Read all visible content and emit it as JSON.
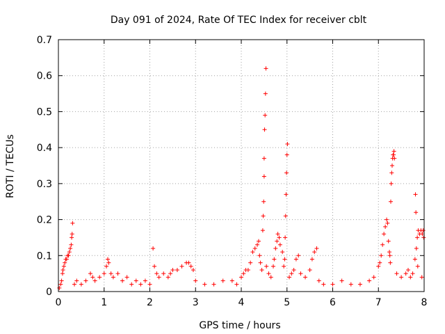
{
  "chart_data": {
    "type": "scatter",
    "title": "Day 091 of 2024, Rate Of TEC Index for receiver cblt",
    "xlabel": "GPS time / hours",
    "ylabel": "ROTI / TECUs",
    "xlim": [
      0,
      8
    ],
    "ylim": [
      0,
      0.7
    ],
    "xticks": [
      0,
      1,
      2,
      3,
      4,
      5,
      6,
      7,
      8
    ],
    "yticks": [
      0,
      0.1,
      0.2,
      0.3,
      0.4,
      0.5,
      0.6,
      0.7
    ],
    "grid": true,
    "marker": "+",
    "color": "#ff0000",
    "series": [
      {
        "name": "ROTI",
        "points": [
          [
            0.02,
            0.01
          ],
          [
            0.05,
            0.02
          ],
          [
            0.07,
            0.03
          ],
          [
            0.09,
            0.05
          ],
          [
            0.1,
            0.06
          ],
          [
            0.12,
            0.07
          ],
          [
            0.14,
            0.08
          ],
          [
            0.16,
            0.09
          ],
          [
            0.18,
            0.09
          ],
          [
            0.2,
            0.1
          ],
          [
            0.22,
            0.1
          ],
          [
            0.24,
            0.11
          ],
          [
            0.26,
            0.12
          ],
          [
            0.28,
            0.13
          ],
          [
            0.29,
            0.15
          ],
          [
            0.3,
            0.16
          ],
          [
            0.31,
            0.19
          ],
          [
            0.35,
            0.02
          ],
          [
            0.4,
            0.03
          ],
          [
            0.5,
            0.02
          ],
          [
            0.6,
            0.03
          ],
          [
            0.7,
            0.05
          ],
          [
            0.75,
            0.04
          ],
          [
            0.8,
            0.03
          ],
          [
            0.9,
            0.04
          ],
          [
            1.0,
            0.05
          ],
          [
            1.05,
            0.07
          ],
          [
            1.08,
            0.09
          ],
          [
            1.1,
            0.08
          ],
          [
            1.15,
            0.05
          ],
          [
            1.2,
            0.04
          ],
          [
            1.3,
            0.05
          ],
          [
            1.4,
            0.03
          ],
          [
            1.5,
            0.04
          ],
          [
            1.6,
            0.02
          ],
          [
            1.7,
            0.03
          ],
          [
            1.8,
            0.02
          ],
          [
            1.9,
            0.03
          ],
          [
            2.0,
            0.02
          ],
          [
            2.07,
            0.12
          ],
          [
            2.1,
            0.07
          ],
          [
            2.15,
            0.05
          ],
          [
            2.2,
            0.04
          ],
          [
            2.3,
            0.05
          ],
          [
            2.4,
            0.04
          ],
          [
            2.45,
            0.05
          ],
          [
            2.5,
            0.06
          ],
          [
            2.6,
            0.06
          ],
          [
            2.7,
            0.07
          ],
          [
            2.8,
            0.08
          ],
          [
            2.85,
            0.08
          ],
          [
            2.9,
            0.07
          ],
          [
            2.95,
            0.06
          ],
          [
            3.0,
            0.03
          ],
          [
            3.2,
            0.02
          ],
          [
            3.4,
            0.02
          ],
          [
            3.6,
            0.03
          ],
          [
            3.8,
            0.03
          ],
          [
            3.9,
            0.02
          ],
          [
            4.0,
            0.04
          ],
          [
            4.05,
            0.05
          ],
          [
            4.1,
            0.06
          ],
          [
            4.15,
            0.06
          ],
          [
            4.2,
            0.08
          ],
          [
            4.25,
            0.11
          ],
          [
            4.3,
            0.12
          ],
          [
            4.35,
            0.13
          ],
          [
            4.38,
            0.14
          ],
          [
            4.4,
            0.1
          ],
          [
            4.42,
            0.08
          ],
          [
            4.45,
            0.06
          ],
          [
            4.47,
            0.17
          ],
          [
            4.48,
            0.21
          ],
          [
            4.49,
            0.25
          ],
          [
            4.5,
            0.32
          ],
          [
            4.5,
            0.37
          ],
          [
            4.51,
            0.45
          ],
          [
            4.52,
            0.49
          ],
          [
            4.53,
            0.55
          ],
          [
            4.54,
            0.62
          ],
          [
            4.55,
            0.07
          ],
          [
            4.6,
            0.05
          ],
          [
            4.65,
            0.04
          ],
          [
            4.7,
            0.07
          ],
          [
            4.72,
            0.09
          ],
          [
            4.75,
            0.12
          ],
          [
            4.78,
            0.14
          ],
          [
            4.8,
            0.16
          ],
          [
            4.83,
            0.15
          ],
          [
            4.85,
            0.13
          ],
          [
            4.9,
            0.11
          ],
          [
            4.93,
            0.07
          ],
          [
            4.95,
            0.09
          ],
          [
            4.96,
            0.15
          ],
          [
            4.97,
            0.21
          ],
          [
            4.98,
            0.27
          ],
          [
            4.99,
            0.33
          ],
          [
            5.0,
            0.38
          ],
          [
            5.01,
            0.41
          ],
          [
            5.05,
            0.04
          ],
          [
            5.1,
            0.05
          ],
          [
            5.15,
            0.06
          ],
          [
            5.2,
            0.09
          ],
          [
            5.25,
            0.1
          ],
          [
            5.3,
            0.05
          ],
          [
            5.4,
            0.04
          ],
          [
            5.5,
            0.06
          ],
          [
            5.55,
            0.09
          ],
          [
            5.6,
            0.11
          ],
          [
            5.65,
            0.12
          ],
          [
            5.7,
            0.03
          ],
          [
            5.8,
            0.02
          ],
          [
            6.0,
            0.02
          ],
          [
            6.2,
            0.03
          ],
          [
            6.4,
            0.02
          ],
          [
            6.6,
            0.02
          ],
          [
            6.8,
            0.03
          ],
          [
            6.9,
            0.04
          ],
          [
            7.0,
            0.07
          ],
          [
            7.03,
            0.08
          ],
          [
            7.06,
            0.1
          ],
          [
            7.09,
            0.13
          ],
          [
            7.12,
            0.16
          ],
          [
            7.15,
            0.18
          ],
          [
            7.18,
            0.2
          ],
          [
            7.2,
            0.19
          ],
          [
            7.22,
            0.14
          ],
          [
            7.24,
            0.11
          ],
          [
            7.25,
            0.1
          ],
          [
            7.26,
            0.08
          ],
          [
            7.27,
            0.25
          ],
          [
            7.28,
            0.3
          ],
          [
            7.29,
            0.33
          ],
          [
            7.3,
            0.35
          ],
          [
            7.31,
            0.37
          ],
          [
            7.32,
            0.38
          ],
          [
            7.33,
            0.38
          ],
          [
            7.34,
            0.39
          ],
          [
            7.35,
            0.37
          ],
          [
            7.4,
            0.05
          ],
          [
            7.5,
            0.04
          ],
          [
            7.6,
            0.05
          ],
          [
            7.65,
            0.06
          ],
          [
            7.7,
            0.04
          ],
          [
            7.75,
            0.05
          ],
          [
            7.8,
            0.09
          ],
          [
            7.83,
            0.12
          ],
          [
            7.85,
            0.15
          ],
          [
            7.87,
            0.17
          ],
          [
            7.9,
            0.16
          ],
          [
            7.93,
            0.17
          ],
          [
            7.96,
            0.16
          ],
          [
            7.98,
            0.17
          ],
          [
            7.99,
            0.15
          ],
          [
            7.81,
            0.27
          ],
          [
            7.82,
            0.22
          ],
          [
            7.86,
            0.07
          ],
          [
            7.95,
            0.04
          ]
        ]
      }
    ]
  }
}
